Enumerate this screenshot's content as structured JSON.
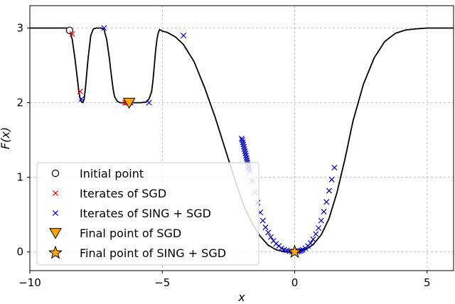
{
  "chart_data": {
    "type": "line",
    "title": "",
    "xlabel": "x",
    "ylabel": "F(x)",
    "xlim": [
      -10,
      6
    ],
    "ylim": [
      -0.25,
      3.3
    ],
    "xticks": [
      -10,
      -5,
      0,
      5
    ],
    "yticks": [
      0,
      1,
      2,
      3
    ],
    "xtick_labels": [
      "−10",
      "−5",
      "0",
      "5"
    ],
    "ytick_labels": [
      "0",
      "1",
      "2",
      "3"
    ],
    "grid": true,
    "legend_position": "lower-left",
    "colors": {
      "curve": "#000000",
      "sgd": "#ff0000",
      "sing_sgd": "#0000cc",
      "final_marker_fill": "#ffa500",
      "grid": "#b0b0b0"
    },
    "function_curve": {
      "x": [
        -10,
        -9,
        -8.6,
        -8.5,
        -8.4,
        -8.3,
        -8.2,
        -8.15,
        -8.1,
        -8.05,
        -8.0,
        -7.95,
        -7.9,
        -7.8,
        -7.7,
        -7.6,
        -7.5,
        -7.4,
        -7.3,
        -7.2,
        -7.1,
        -7.0,
        -6.95,
        -6.9,
        -6.85,
        -6.8,
        -6.7,
        -6.6,
        -6.4,
        -6.2,
        -6.0,
        -5.8,
        -5.6,
        -5.5,
        -5.4,
        -5.35,
        -5.3,
        -5.25,
        -5.2,
        -5.15,
        -5.1,
        -5.05,
        -5.0,
        -4.8,
        -4.5,
        -4.2,
        -3.8,
        -3.4,
        -3.0,
        -2.6,
        -2.2,
        -1.9,
        -1.6,
        -1.3,
        -1.0,
        -0.7,
        -0.4,
        -0.2,
        0.0,
        0.2,
        0.4,
        0.7,
        1.0,
        1.3,
        1.6,
        1.9,
        2.2,
        2.6,
        3.0,
        3.4,
        3.8,
        4.2,
        4.6,
        5.0,
        5.5,
        6.0
      ],
      "y": [
        3.0,
        3.0,
        3.0,
        2.97,
        2.85,
        2.6,
        2.3,
        2.15,
        2.05,
        2.01,
        2.0,
        2.05,
        2.2,
        2.6,
        2.9,
        2.99,
        3.0,
        3.0,
        3.0,
        2.98,
        2.85,
        2.6,
        2.45,
        2.3,
        2.17,
        2.08,
        2.02,
        2.0,
        2.0,
        2.0,
        2.0,
        2.0,
        2.01,
        2.05,
        2.15,
        2.3,
        2.5,
        2.7,
        2.85,
        2.94,
        2.98,
        2.97,
        2.96,
        2.94,
        2.88,
        2.78,
        2.55,
        2.2,
        1.8,
        1.35,
        0.9,
        0.6,
        0.38,
        0.21,
        0.09,
        0.03,
        0.005,
        0.0,
        0.0,
        0.005,
        0.03,
        0.1,
        0.23,
        0.45,
        0.8,
        1.25,
        1.75,
        2.25,
        2.6,
        2.82,
        2.93,
        2.975,
        2.99,
        3.0,
        3.0,
        3.0
      ]
    },
    "series": [
      {
        "name": "Initial point",
        "marker": "circle",
        "x": [
          -8.5
        ],
        "y": [
          2.97
        ]
      },
      {
        "name": "Iterates of SGD",
        "marker": "x",
        "x": [
          -8.4,
          -8.1,
          -6.4,
          -6.35,
          -6.3,
          -6.25
        ],
        "y": [
          2.92,
          2.15,
          2.0,
          2.0,
          2.0,
          2.0
        ]
      },
      {
        "name": "Iterates of SING + SGD",
        "marker": "x",
        "x": [
          -8.05,
          -7.2,
          -6.2,
          -5.5,
          -4.2,
          -2.0,
          -1.98,
          -1.96,
          -1.94,
          -1.92,
          -1.9,
          -1.88,
          -1.86,
          -1.84,
          -1.82,
          -1.8,
          -1.78,
          -1.76,
          -1.74,
          -1.72,
          -1.7,
          -1.6,
          -1.5,
          -1.4,
          -1.3,
          -1.2,
          -1.1,
          -1.0,
          -0.9,
          -0.8,
          -0.7,
          -0.6,
          -0.5,
          -0.4,
          -0.3,
          -0.2,
          -0.1,
          0.1,
          0.15,
          0.2,
          0.25,
          0.3,
          0.4,
          0.5,
          0.6,
          0.7,
          0.8,
          0.9,
          1.0,
          1.1,
          1.2,
          1.3,
          1.4,
          1.5
        ],
        "y": [
          2.05,
          3.0,
          2.0,
          2.0,
          2.9,
          1.52,
          1.5,
          1.47,
          1.44,
          1.41,
          1.38,
          1.35,
          1.32,
          1.29,
          1.26,
          1.23,
          1.2,
          1.17,
          1.14,
          1.11,
          1.08,
          0.95,
          0.8,
          0.66,
          0.53,
          0.42,
          0.33,
          0.26,
          0.2,
          0.15,
          0.11,
          0.08,
          0.05,
          0.03,
          0.02,
          0.01,
          0.005,
          0.005,
          0.01,
          0.015,
          0.02,
          0.03,
          0.05,
          0.08,
          0.12,
          0.17,
          0.24,
          0.32,
          0.42,
          0.54,
          0.67,
          0.82,
          0.97,
          1.13
        ]
      },
      {
        "name": "Final point of SGD",
        "marker": "triangle-down",
        "x": [
          -6.25
        ],
        "y": [
          2.0
        ]
      },
      {
        "name": "Final point of SING + SGD",
        "marker": "star",
        "x": [
          0.0
        ],
        "y": [
          0.0
        ]
      }
    ]
  }
}
